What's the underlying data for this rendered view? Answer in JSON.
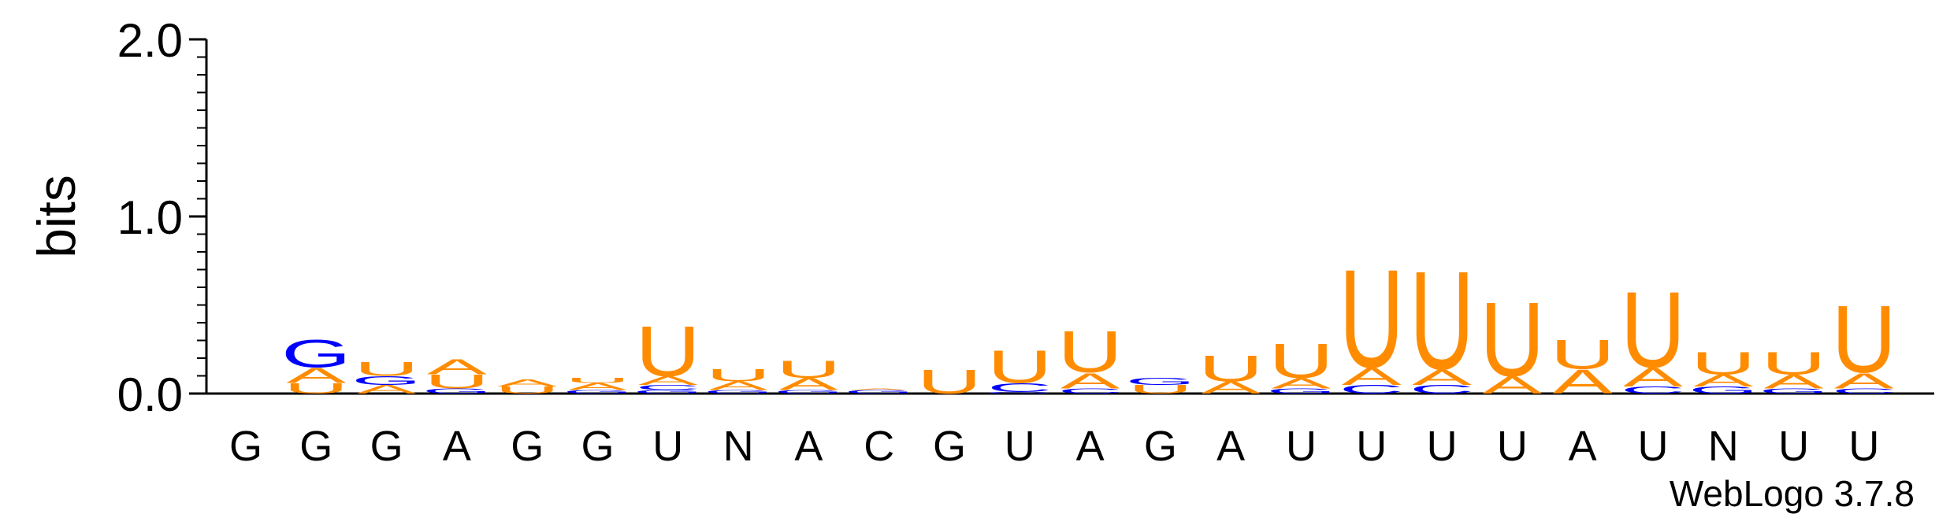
{
  "chart_data": {
    "type": "sequence-logo",
    "ylabel": "bits",
    "ylim": [
      0,
      2
    ],
    "yticks": [
      "0.0",
      "1.0",
      "2.0"
    ],
    "colors": {
      "A": "#ff8c00",
      "U": "#ff8c00",
      "G": "#0000ff",
      "C": "#0000ff"
    },
    "positions": [
      {
        "label": "G",
        "stack": []
      },
      {
        "label": "G",
        "stack": [
          {
            "l": "U",
            "h": 0.06
          },
          {
            "l": "A",
            "h": 0.09
          },
          {
            "l": "G",
            "h": 0.16
          }
        ]
      },
      {
        "label": "G",
        "stack": [
          {
            "l": "A",
            "h": 0.05
          },
          {
            "l": "G",
            "h": 0.05
          },
          {
            "l": "U",
            "h": 0.08
          }
        ]
      },
      {
        "label": "A",
        "stack": [
          {
            "l": "G",
            "h": 0.03
          },
          {
            "l": "U",
            "h": 0.08
          },
          {
            "l": "A",
            "h": 0.09
          }
        ]
      },
      {
        "label": "G",
        "stack": [
          {
            "l": "U",
            "h": 0.04
          },
          {
            "l": "A",
            "h": 0.04
          }
        ]
      },
      {
        "label": "G",
        "stack": [
          {
            "l": "G",
            "h": 0.02
          },
          {
            "l": "A",
            "h": 0.04
          },
          {
            "l": "U",
            "h": 0.03
          }
        ]
      },
      {
        "label": "U",
        "stack": [
          {
            "l": "G",
            "h": 0.02
          },
          {
            "l": "C",
            "h": 0.03
          },
          {
            "l": "A",
            "h": 0.05
          },
          {
            "l": "U",
            "h": 0.29
          }
        ]
      },
      {
        "label": "N",
        "stack": [
          {
            "l": "G",
            "h": 0.02
          },
          {
            "l": "A",
            "h": 0.05
          },
          {
            "l": "U",
            "h": 0.07
          }
        ]
      },
      {
        "label": "A",
        "stack": [
          {
            "l": "G",
            "h": 0.02
          },
          {
            "l": "A",
            "h": 0.07
          },
          {
            "l": "U",
            "h": 0.1
          }
        ]
      },
      {
        "label": "C",
        "stack": [
          {
            "l": "G",
            "h": 0.02
          },
          {
            "l": "A",
            "h": 0.01
          }
        ]
      },
      {
        "label": "G",
        "stack": [
          {
            "l": "U",
            "h": 0.14
          }
        ]
      },
      {
        "label": "U",
        "stack": [
          {
            "l": "G",
            "h": 0.01
          },
          {
            "l": "C",
            "h": 0.05
          },
          {
            "l": "U",
            "h": 0.19
          }
        ]
      },
      {
        "label": "A",
        "stack": [
          {
            "l": "C",
            "h": 0.03
          },
          {
            "l": "A",
            "h": 0.09
          },
          {
            "l": "U",
            "h": 0.24
          }
        ]
      },
      {
        "label": "G",
        "stack": [
          {
            "l": "U",
            "h": 0.05
          },
          {
            "l": "G",
            "h": 0.04
          }
        ]
      },
      {
        "label": "A",
        "stack": [
          {
            "l": "A",
            "h": 0.07
          },
          {
            "l": "U",
            "h": 0.15
          }
        ]
      },
      {
        "label": "U",
        "stack": [
          {
            "l": "G",
            "h": 0.03
          },
          {
            "l": "A",
            "h": 0.06
          },
          {
            "l": "U",
            "h": 0.2
          }
        ]
      },
      {
        "label": "U",
        "stack": [
          {
            "l": "C",
            "h": 0.05
          },
          {
            "l": "A",
            "h": 0.1
          },
          {
            "l": "U",
            "h": 0.57
          }
        ]
      },
      {
        "label": "U",
        "stack": [
          {
            "l": "C",
            "h": 0.05
          },
          {
            "l": "A",
            "h": 0.09
          },
          {
            "l": "U",
            "h": 0.57
          }
        ]
      },
      {
        "label": "U",
        "stack": [
          {
            "l": "A",
            "h": 0.1
          },
          {
            "l": "U",
            "h": 0.43
          }
        ]
      },
      {
        "label": "A",
        "stack": [
          {
            "l": "A",
            "h": 0.14
          },
          {
            "l": "U",
            "h": 0.17
          }
        ]
      },
      {
        "label": "U",
        "stack": [
          {
            "l": "C",
            "h": 0.04
          },
          {
            "l": "A",
            "h": 0.11
          },
          {
            "l": "U",
            "h": 0.44
          }
        ]
      },
      {
        "label": "N",
        "stack": [
          {
            "l": "G",
            "h": 0.04
          },
          {
            "l": "A",
            "h": 0.07
          },
          {
            "l": "U",
            "h": 0.13
          }
        ]
      },
      {
        "label": "U",
        "stack": [
          {
            "l": "G",
            "h": 0.03
          },
          {
            "l": "A",
            "h": 0.08
          },
          {
            "l": "U",
            "h": 0.13
          }
        ]
      },
      {
        "label": "U",
        "stack": [
          {
            "l": "C",
            "h": 0.03
          },
          {
            "l": "A",
            "h": 0.09
          },
          {
            "l": "U",
            "h": 0.39
          }
        ]
      }
    ],
    "credit": "WebLogo 3.7.8"
  }
}
